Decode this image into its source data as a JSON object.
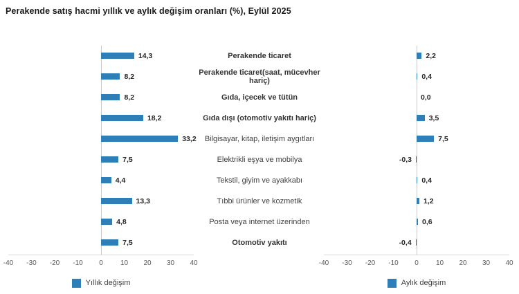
{
  "title": "Perakende satış hacmi yıllık ve aylık değişim oranları (%), Eylül 2025",
  "colors": {
    "bar": "#2E7EB8",
    "axis_line": "#D9D9D9",
    "zero_line": "#C9C9C9",
    "tick_text": "#595959",
    "category_text": "#3F3F3F",
    "value_text": "#262626",
    "title_text": "#1A1A1A"
  },
  "chart_data": {
    "type": "bar",
    "orientation": "horizontal",
    "layout": "dual-panel-tornado",
    "title": "Perakende satış hacmi yıllık ve aylık değişim oranları (%), Eylül 2025",
    "categories": [
      "Perakende ticaret",
      "Perakende ticaret(saat, mücevher hariç)",
      "Gıda, içecek ve tütün",
      "Gıda dışı (otomotiv yakıtı hariç)",
      "Bilgisayar, kitap, iletişim aygıtları",
      "Elektrikli eşya ve mobilya",
      "Tekstil, giyim ve ayakkabı",
      "Tıbbi ürünler ve kozmetik",
      "Posta veya internet üzerinden",
      "Otomotiv yakıtı"
    ],
    "categories_bold": [
      true,
      true,
      true,
      true,
      false,
      false,
      false,
      false,
      false,
      true
    ],
    "series": [
      {
        "name": "Yıllık değişim",
        "panel": "left",
        "values": [
          14.3,
          8.2,
          8.2,
          18.2,
          33.2,
          7.5,
          4.4,
          13.3,
          4.8,
          7.5
        ],
        "labels": [
          "14,3",
          "8,2",
          "8,2",
          "18,2",
          "33,2",
          "7,5",
          "4,4",
          "13,3",
          "4,8",
          "7,5"
        ]
      },
      {
        "name": "Aylık değişim",
        "panel": "right",
        "values": [
          2.2,
          0.4,
          0.0,
          3.5,
          7.5,
          -0.3,
          0.4,
          1.2,
          0.6,
          -0.4
        ],
        "labels": [
          "2,2",
          "0,4",
          "0,0",
          "3,5",
          "7,5",
          "-0,3",
          "0,4",
          "1,2",
          "0,6",
          "-0,4"
        ]
      }
    ],
    "xlim": [
      -40,
      40
    ],
    "ticks": [
      "-40",
      "-30",
      "-20",
      "-10",
      "0",
      "10",
      "20",
      "30",
      "40"
    ],
    "grid": false,
    "legend_position": "bottom"
  }
}
